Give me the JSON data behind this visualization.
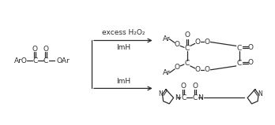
{
  "figsize": [
    3.48,
    1.59
  ],
  "dpi": 100,
  "bg_color": "#ffffff",
  "font_size": 6.5,
  "line_color": "#2a2a2a",
  "arrow1_top": "excess H₂O₂",
  "arrow1_bot": "ImH",
  "arrow2_label": "ImH",
  "reactant": "ArO–C–C–OAr",
  "lw": 0.9
}
